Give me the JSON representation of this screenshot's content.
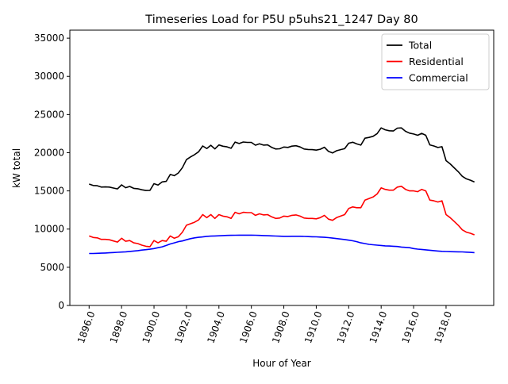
{
  "chart_data": {
    "type": "line",
    "title": "Timeseries Load for P5U p5uhs21_1247  Day 80",
    "xlabel": "Hour of Year",
    "ylabel": "kW total",
    "xlim": [
      1894.8125,
      1920.9375
    ],
    "ylim": [
      0,
      36050
    ],
    "grid": false,
    "legend_placement": "top-right",
    "x_ticks": [
      1896,
      1898,
      1900,
      1902,
      1904,
      1906,
      1908,
      1910,
      1912,
      1914,
      1916,
      1918
    ],
    "x_tick_labels": [
      "1896.0",
      "1898.0",
      "1900.0",
      "1902.0",
      "1904.0",
      "1906.0",
      "1908.0",
      "1910.0",
      "1912.0",
      "1914.0",
      "1916.0",
      "1918.0"
    ],
    "y_ticks": [
      0,
      5000,
      10000,
      15000,
      20000,
      25000,
      30000,
      35000
    ],
    "y_tick_labels": [
      "0",
      "5000",
      "10000",
      "15000",
      "20000",
      "25000",
      "30000",
      "35000"
    ],
    "x_start": 1896,
    "x_step": 0.25,
    "series": [
      {
        "name": "Total",
        "color": "#000000",
        "values": [
          15900,
          15710,
          15680,
          15500,
          15520,
          15500,
          15380,
          15260,
          15790,
          15420,
          15580,
          15330,
          15280,
          15150,
          15050,
          15070,
          15950,
          15760,
          16180,
          16250,
          17150,
          17000,
          17350,
          18050,
          19100,
          19450,
          19750,
          20120,
          20880,
          20550,
          20980,
          20500,
          21020,
          20850,
          20770,
          20580,
          21390,
          21200,
          21400,
          21350,
          21350,
          20990,
          21170,
          21000,
          21030,
          20710,
          20490,
          20520,
          20750,
          20700,
          20860,
          20910,
          20760,
          20490,
          20420,
          20400,
          20340,
          20460,
          20720,
          20180,
          19970,
          20260,
          20400,
          20530,
          21250,
          21370,
          21150,
          21000,
          21900,
          22000,
          22150,
          22500,
          23250,
          23000,
          22880,
          22850,
          23220,
          23250,
          22800,
          22560,
          22450,
          22280,
          22530,
          22280,
          21030,
          20880,
          20680,
          20790,
          18960,
          18540,
          18030,
          17520,
          16910,
          16580,
          16400,
          16170
        ]
      },
      {
        "name": "Residential",
        "color": "#ff0000",
        "values": [
          9100,
          8900,
          8850,
          8650,
          8650,
          8600,
          8450,
          8300,
          8800,
          8400,
          8500,
          8200,
          8100,
          7900,
          7750,
          7700,
          8500,
          8200,
          8500,
          8400,
          9100,
          8800,
          9000,
          9600,
          10500,
          10700,
          10900,
          11200,
          11900,
          11500,
          11900,
          11400,
          11900,
          11700,
          11600,
          11400,
          12200,
          12000,
          12200,
          12150,
          12150,
          11800,
          12000,
          11850,
          11900,
          11600,
          11400,
          11450,
          11700,
          11650,
          11800,
          11850,
          11700,
          11450,
          11400,
          11400,
          11350,
          11500,
          11800,
          11300,
          11150,
          11500,
          11700,
          11900,
          12700,
          12900,
          12800,
          12800,
          13800,
          14000,
          14200,
          14600,
          15400,
          15200,
          15100,
          15100,
          15500,
          15600,
          15200,
          15000,
          15000,
          14900,
          15200,
          15000,
          13800,
          13700,
          13550,
          13700,
          11900,
          11500,
          11000,
          10500,
          9900,
          9600,
          9450,
          9250
        ]
      },
      {
        "name": "Commercial",
        "color": "#0000ff",
        "values": [
          6800,
          6810,
          6830,
          6850,
          6870,
          6900,
          6930,
          6960,
          6990,
          7020,
          7080,
          7130,
          7180,
          7250,
          7300,
          7370,
          7450,
          7560,
          7680,
          7850,
          8050,
          8200,
          8350,
          8450,
          8600,
          8750,
          8850,
          8920,
          8980,
          9050,
          9080,
          9100,
          9120,
          9150,
          9170,
          9180,
          9190,
          9200,
          9200,
          9200,
          9200,
          9190,
          9170,
          9150,
          9130,
          9110,
          9090,
          9070,
          9050,
          9050,
          9060,
          9060,
          9060,
          9040,
          9020,
          9000,
          8990,
          8960,
          8920,
          8880,
          8820,
          8760,
          8700,
          8630,
          8550,
          8470,
          8350,
          8200,
          8100,
          8000,
          7950,
          7900,
          7850,
          7800,
          7780,
          7750,
          7720,
          7650,
          7600,
          7560,
          7450,
          7380,
          7330,
          7280,
          7230,
          7180,
          7130,
          7090,
          7060,
          7040,
          7030,
          7020,
          7010,
          6980,
          6950,
          6920
        ]
      }
    ]
  }
}
